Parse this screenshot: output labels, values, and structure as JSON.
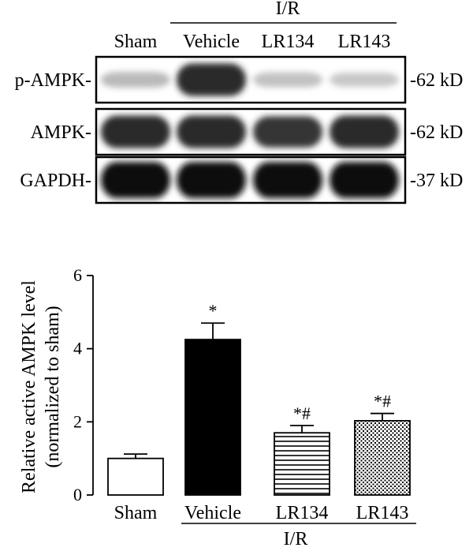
{
  "blot": {
    "group_label": "I/R",
    "lanes": [
      "Sham",
      "Vehicle",
      "LR134",
      "LR143"
    ],
    "rows": [
      {
        "name": "p-AMPK-",
        "size": "-62 kD",
        "intensity": [
          0.18,
          0.85,
          0.15,
          0.12
        ]
      },
      {
        "name": "AMPK-",
        "size": "-62 kD",
        "intensity": [
          0.85,
          0.85,
          0.8,
          0.85
        ]
      },
      {
        "name": "GAPDH-",
        "size": "-37 kD",
        "intensity": [
          1.0,
          1.0,
          1.0,
          1.0
        ]
      }
    ]
  },
  "chart_data": {
    "type": "bar",
    "categories": [
      "Sham",
      "Vehicle",
      "LR134",
      "LR143"
    ],
    "values": [
      1.0,
      4.25,
      1.7,
      2.03
    ],
    "errors": [
      0.12,
      0.45,
      0.2,
      0.2
    ],
    "annotations": [
      "",
      "*",
      "*#",
      "*#"
    ],
    "bar_styles": [
      "white",
      "black",
      "horizontal-stripes",
      "dots"
    ],
    "ylabel_line1": "Relative active AMPK level",
    "ylabel_line2": "(normalized to sham)",
    "group_label": "I/R",
    "ylim": [
      0,
      6
    ],
    "yticks": [
      0,
      2,
      4,
      6
    ]
  }
}
